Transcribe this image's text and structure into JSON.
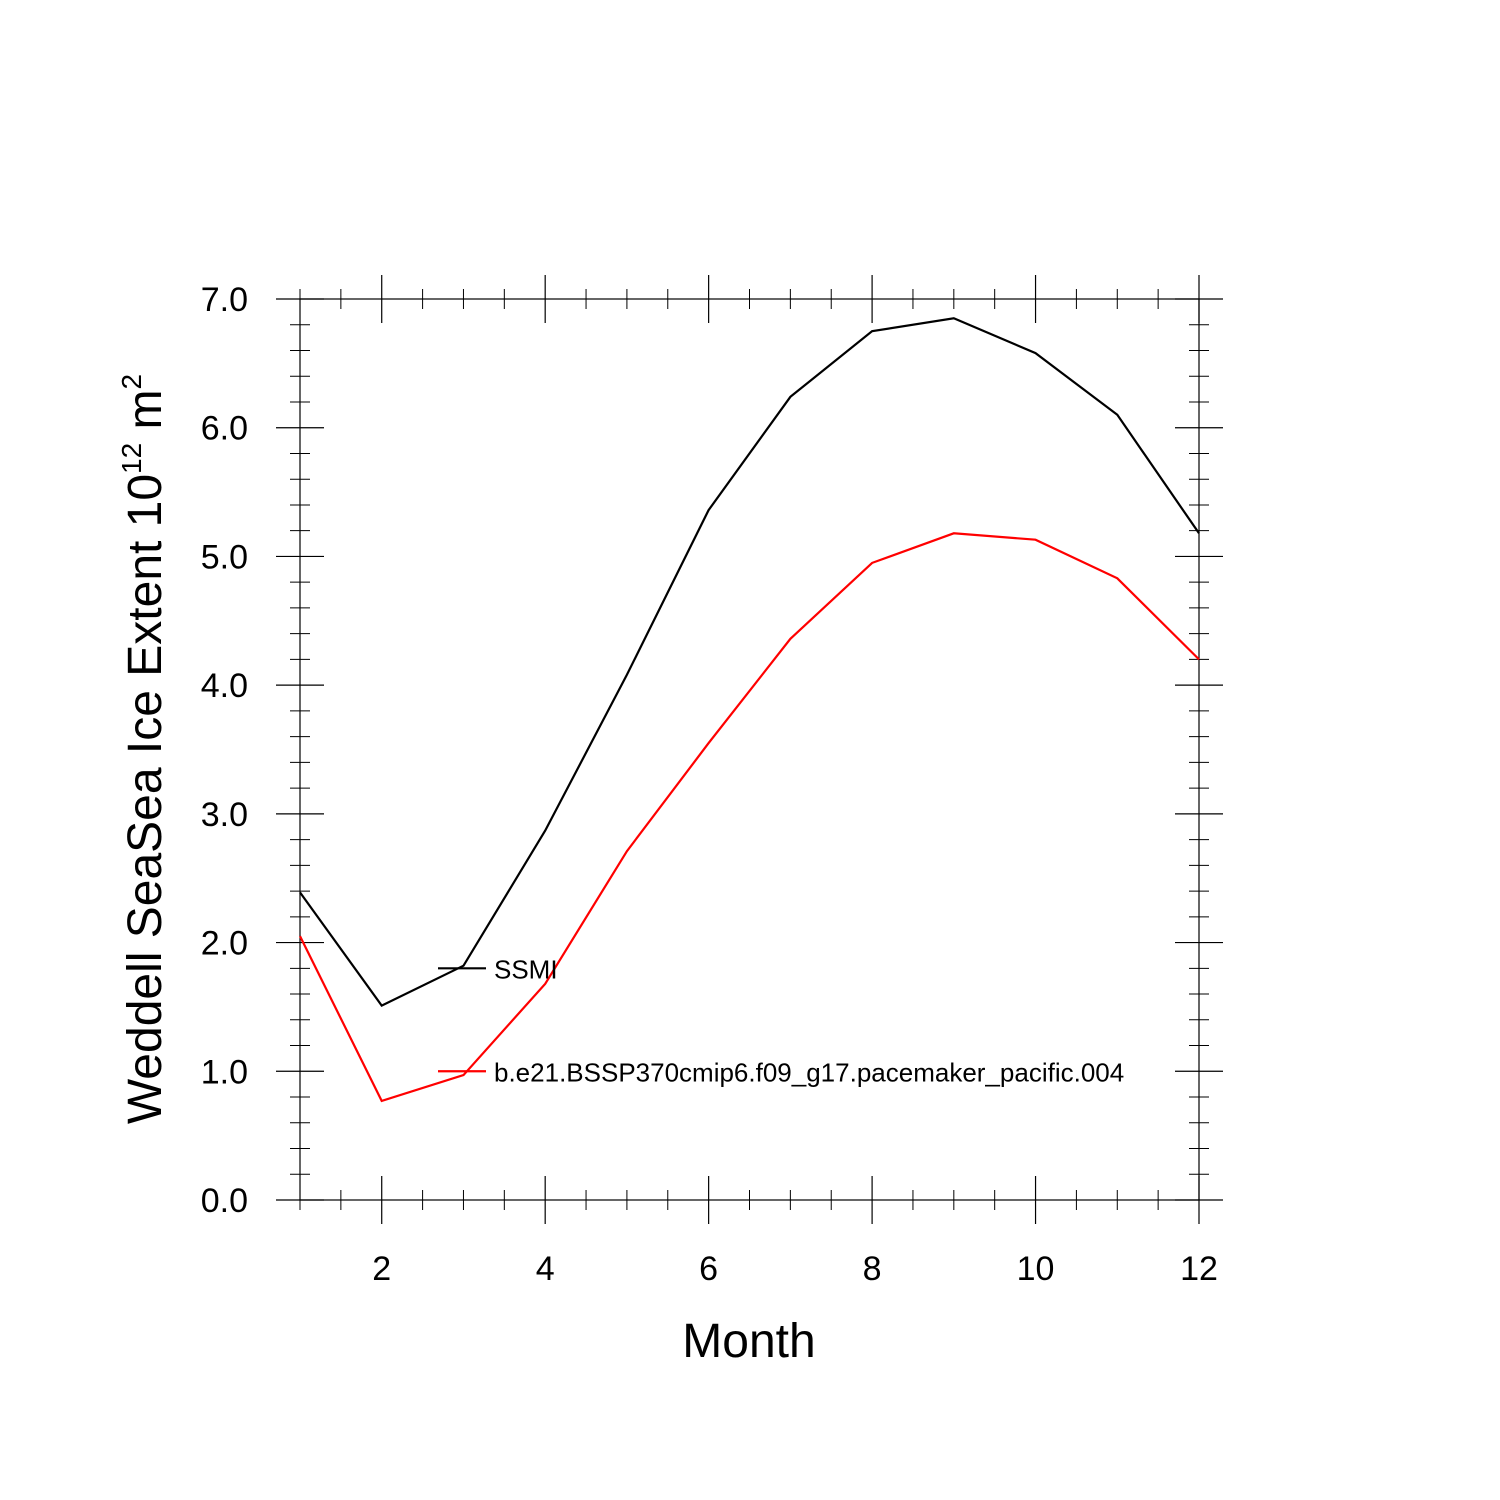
{
  "chart_data": {
    "type": "line",
    "title": "",
    "xlabel": "Month",
    "ylabel": {
      "main": "Weddell SeaSea Ice Extent 10",
      "superscript1": "12",
      "unit": " m",
      "superscript2": "2"
    },
    "xlim": [
      1,
      12
    ],
    "ylim": [
      0,
      7
    ],
    "x": [
      1,
      2,
      3,
      4,
      5,
      6,
      7,
      8,
      9,
      10,
      11,
      12
    ],
    "x_ticks": [
      2,
      4,
      6,
      8,
      10,
      12
    ],
    "x_tick_labels": [
      "2",
      "4",
      "6",
      "8",
      "10",
      "12"
    ],
    "y_ticks": [
      0,
      1,
      2,
      3,
      4,
      5,
      6,
      7
    ],
    "y_tick_labels": [
      "0.0",
      "1.0",
      "2.0",
      "3.0",
      "4.0",
      "5.0",
      "6.0",
      "7.0"
    ],
    "grid": false,
    "legend_position": "inside, middle-left",
    "series": [
      {
        "name": "SSMI",
        "color": "#000000",
        "values": [
          2.39,
          1.51,
          1.82,
          2.87,
          4.08,
          5.36,
          6.24,
          6.75,
          6.85,
          6.58,
          6.1,
          5.18
        ]
      },
      {
        "name": "b.e21.BSSP370cmip6.f09_g17.pacemaker_pacific.004",
        "color": "#ff0000",
        "values": [
          2.05,
          0.77,
          0.97,
          1.68,
          2.71,
          3.55,
          4.36,
          4.95,
          5.18,
          5.13,
          4.83,
          4.2
        ]
      }
    ]
  }
}
